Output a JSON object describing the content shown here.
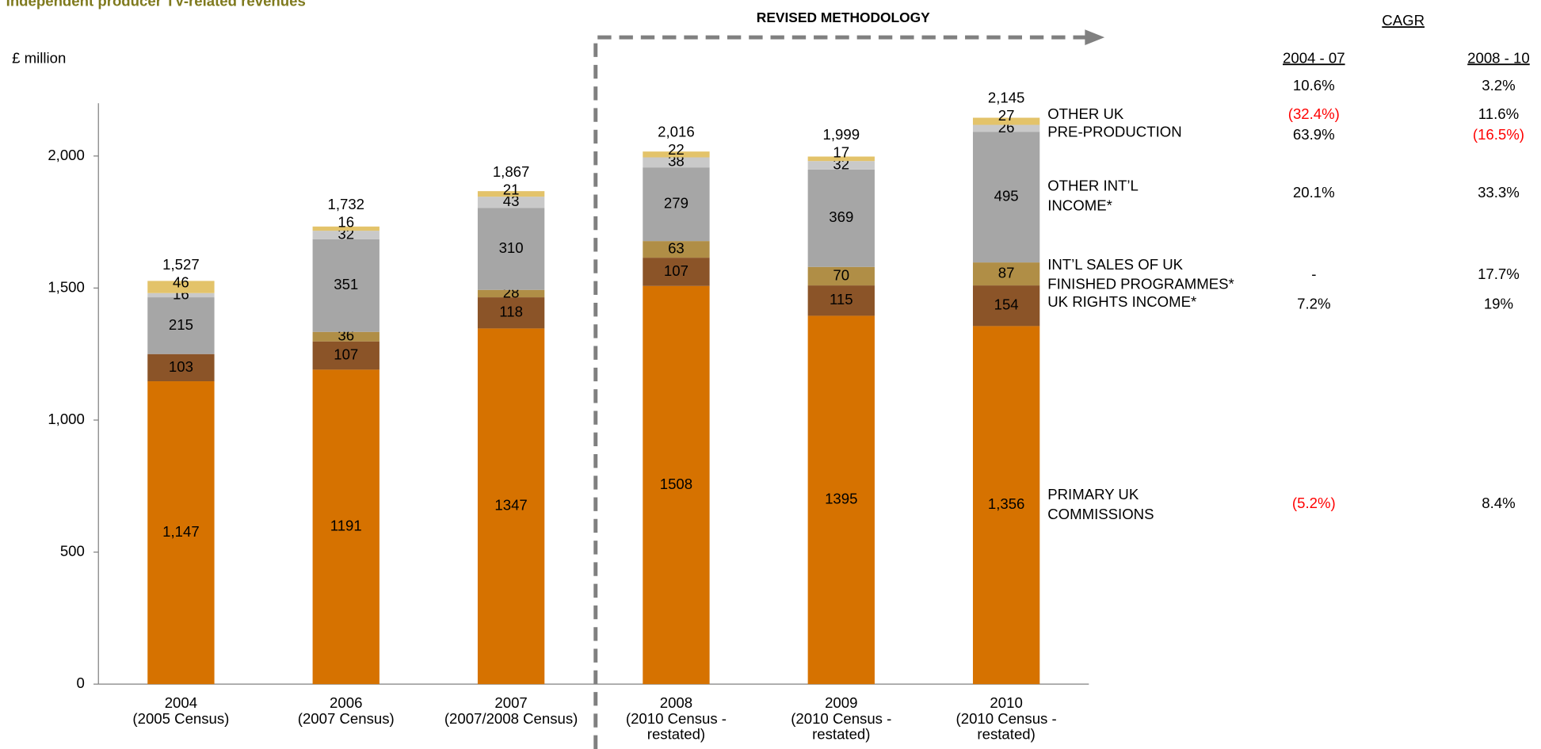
{
  "chart_data": {
    "type": "stacked_bar",
    "title": "Independent producer TV-related revenues",
    "y_axis_label": "£ million",
    "annotation": "REVISED METHODOLOGY",
    "categories": [
      "2004\n(2005 Census)",
      "2006\n(2007 Census)",
      "2007\n(2007/2008 Census)",
      "2008\n(2010 Census -\nrestated)",
      "2009\n(2010 Census -\nrestated)",
      "2010\n(2010 Census -\nrestated)"
    ],
    "ylim": [
      0,
      2200
    ],
    "yticks": [
      0,
      500,
      {
        "value": 1000,
        "label": "1,000"
      },
      {
        "value": 1500,
        "label": "1,500"
      },
      {
        "value": 2000,
        "label": "2,000"
      }
    ],
    "series": [
      {
        "name": "PRIMARY UK\nCOMMISSIONS",
        "color": "#d67200",
        "values": [
          1147,
          1191,
          1347,
          1508,
          1395,
          1356
        ],
        "value_labels": [
          "1,147",
          "1191",
          "1347",
          "1508",
          "1395",
          "1,356"
        ]
      },
      {
        "name": "UK RIGHTS INCOME*",
        "color": "#8b5428",
        "values": [
          103,
          107,
          118,
          107,
          115,
          154
        ]
      },
      {
        "name": "INT’L SALES OF UK\nFINISHED PROGRAMMES*",
        "color": "#b08e46",
        "values": [
          null,
          36,
          28,
          63,
          70,
          87
        ]
      },
      {
        "name": "OTHER INT’L\nINCOME*",
        "color": "#a6a6a6",
        "values": [
          215,
          351,
          310,
          279,
          369,
          495
        ]
      },
      {
        "name": "PRE-PRODUCTION",
        "color": "#c9c9c9",
        "values": [
          16,
          32,
          43,
          38,
          32,
          26
        ]
      },
      {
        "name": "OTHER UK",
        "color": "#e3c36a",
        "values": [
          46,
          16,
          21,
          22,
          17,
          27
        ]
      }
    ],
    "totals": [
      1527,
      1732,
      1867,
      2016,
      1999,
      2145
    ],
    "totals_labels": [
      "1,527",
      "1,732",
      "1,867",
      "2,016",
      "1,999",
      "2,145"
    ],
    "cagr": {
      "title": "CAGR",
      "columns": [
        "2004 - 07",
        "2008 - 10"
      ],
      "total": [
        "10.6%",
        "3.2%"
      ],
      "rows": [
        [
          "(5.2%)",
          "8.4%"
        ],
        [
          "7.2%",
          "19%"
        ],
        [
          "-",
          "17.7%"
        ],
        [
          "20.1%",
          "33.3%"
        ],
        [
          "63.9%",
          "(16.5%)"
        ],
        [
          "(32.4%)",
          "11.6%"
        ]
      ]
    }
  }
}
